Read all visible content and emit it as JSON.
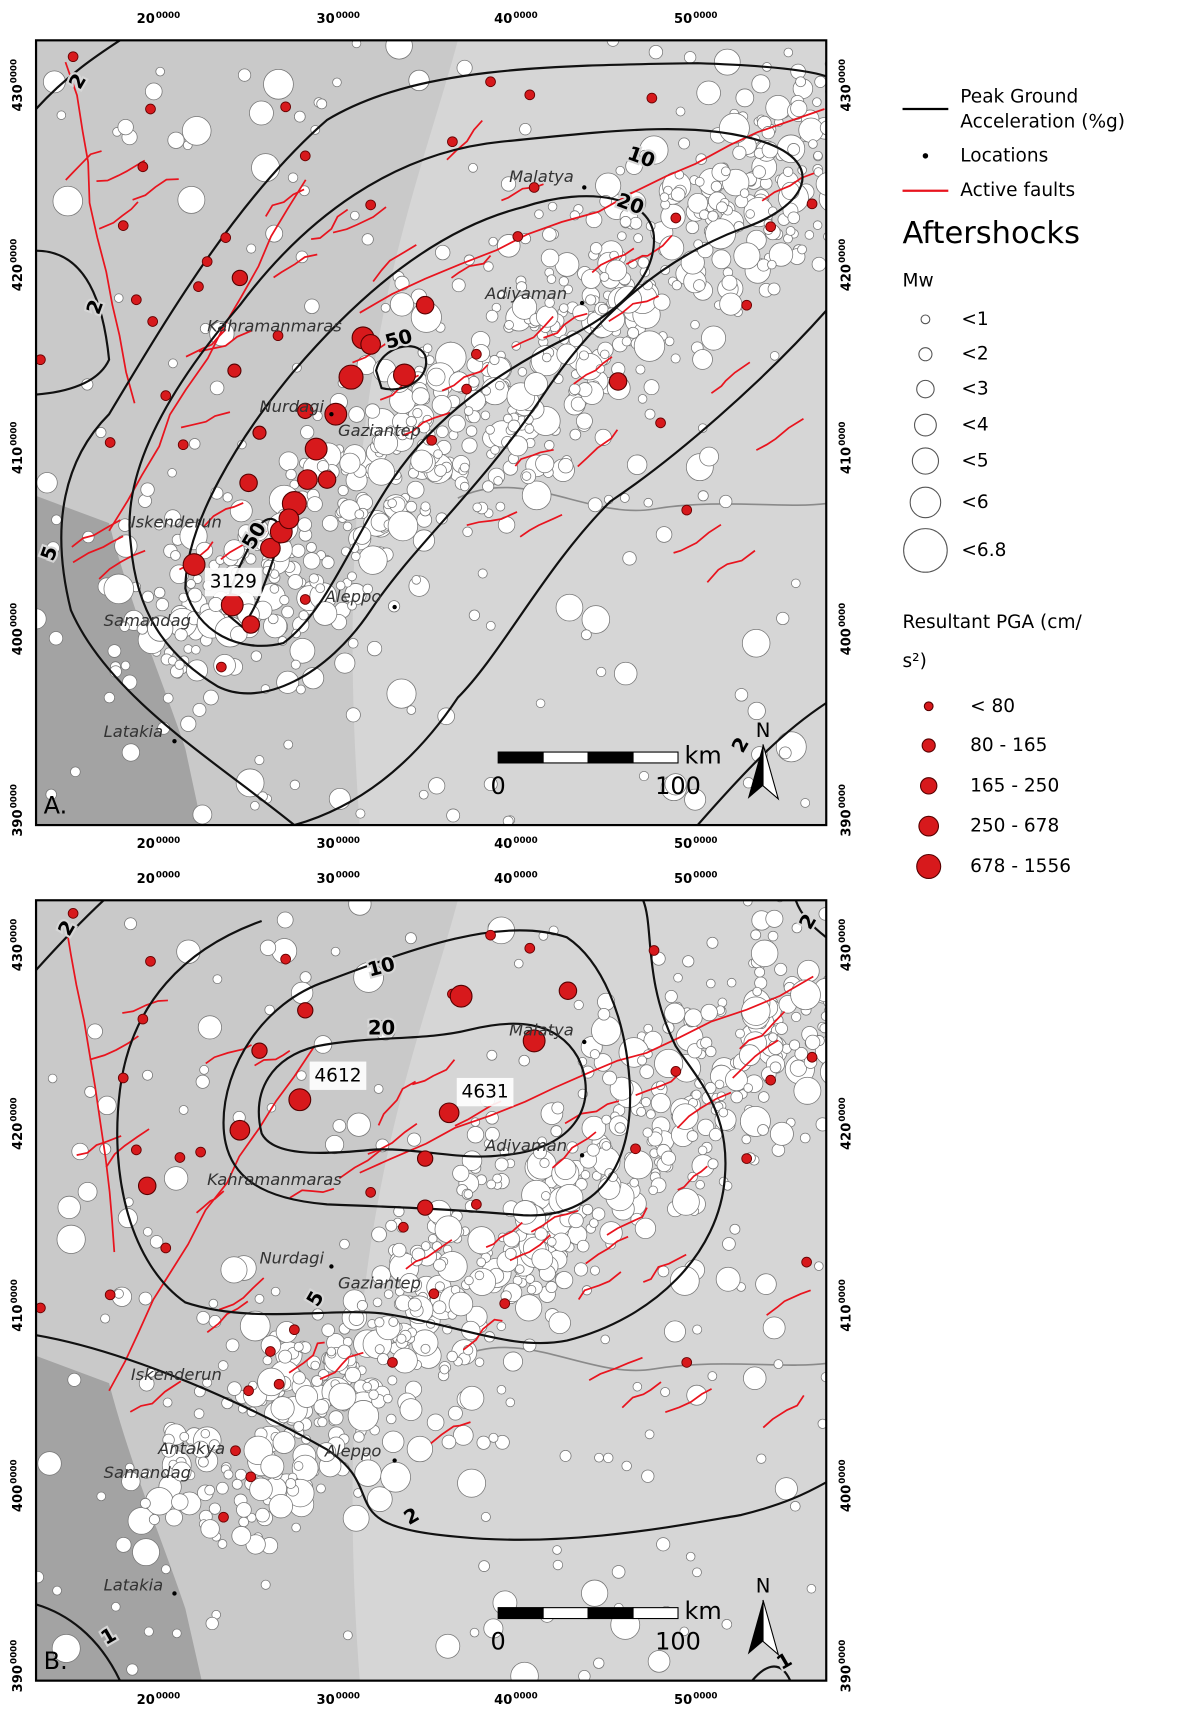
{
  "x_axis_labels": [
    {
      "main": "20",
      "sup": "0000"
    },
    {
      "main": "30",
      "sup": "0000"
    },
    {
      "main": "40",
      "sup": "0000"
    },
    {
      "main": "50",
      "sup": "0000"
    }
  ],
  "y_axis_labels": [
    {
      "main": "430",
      "sup": "0000"
    },
    {
      "main": "420",
      "sup": "0000"
    },
    {
      "main": "410",
      "sup": "0000"
    },
    {
      "main": "400",
      "sup": "0000"
    },
    {
      "main": "390",
      "sup": "0000"
    }
  ],
  "panels": [
    {
      "label": "A.",
      "contour_labels": [
        "2",
        "2",
        "10",
        "20",
        "50",
        "50",
        "5",
        "2"
      ],
      "places": [
        "Malatya",
        "Adiyaman",
        "Kahramanmaras",
        "Nurdagi",
        "Gaziantep",
        "Iskenderun",
        "Samandag",
        "Aleppo",
        "Latakia"
      ],
      "stations": [
        "3129"
      ],
      "scale": {
        "start": "0",
        "end": "100",
        "unit": "km"
      },
      "north": "N"
    },
    {
      "label": "B.",
      "contour_labels": [
        "2",
        "10",
        "20",
        "5",
        "2",
        "1",
        "1",
        "2"
      ],
      "places": [
        "Malatya",
        "Adiyaman",
        "Kahramanmaras",
        "Nurdagi",
        "Gaziantep",
        "Iskenderun",
        "Antakya",
        "Samandag",
        "Aleppo",
        "Latakia"
      ],
      "stations": [
        "4612",
        "4631"
      ],
      "scale": {
        "start": "0",
        "end": "100",
        "unit": "km"
      },
      "north": "N"
    }
  ],
  "legend": {
    "pga_title": [
      "Peak Ground",
      "Acceleration (%g)"
    ],
    "locations": "Locations",
    "faults": "Active faults",
    "aftershocks": "Aftershocks",
    "mw_title": "Mw",
    "mw_classes": [
      "<1",
      "<2",
      "<3",
      "<4",
      "<5",
      "<6",
      "<6.8"
    ],
    "resultant_title": [
      "Resultant PGA (cm/",
      "s²)"
    ],
    "resultant_classes": [
      "< 80",
      "80 - 165",
      "165 - 250",
      "250 - 678",
      "678 - 1556"
    ]
  }
}
